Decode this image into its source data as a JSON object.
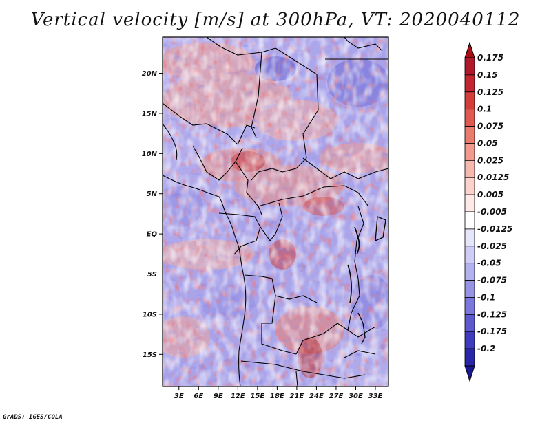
{
  "title": "Vertical velocity [m/s] at 300hPa, VT: 2020040112",
  "credit": "GrADS: IGES/COLA",
  "map": {
    "lat_labels": [
      {
        "text": "20N",
        "lat": 20
      },
      {
        "text": "15N",
        "lat": 15
      },
      {
        "text": "10N",
        "lat": 10
      },
      {
        "text": "5N",
        "lat": 5
      },
      {
        "text": "EQ",
        "lat": 0
      },
      {
        "text": "5S",
        "lat": -5
      },
      {
        "text": "10S",
        "lat": -10
      },
      {
        "text": "15S",
        "lat": -15
      }
    ],
    "lon_labels": [
      {
        "text": "3E",
        "lon": 3
      },
      {
        "text": "6E",
        "lon": 6
      },
      {
        "text": "9E",
        "lon": 9
      },
      {
        "text": "12E",
        "lon": 12
      },
      {
        "text": "15E",
        "lon": 15
      },
      {
        "text": "18E",
        "lon": 18
      },
      {
        "text": "21E",
        "lon": 21
      },
      {
        "text": "24E",
        "lon": 24
      },
      {
        "text": "27E",
        "lon": 27
      },
      {
        "text": "30E",
        "lon": 30
      },
      {
        "text": "33E",
        "lon": 33
      }
    ],
    "lat_range": [
      -19,
      24.5
    ],
    "lon_range": [
      0.5,
      35
    ]
  },
  "colorbar": {
    "levels": [
      {
        "label": "0.175",
        "color": "#b2182b"
      },
      {
        "label": "0.15",
        "color": "#c3262f"
      },
      {
        "label": "0.125",
        "color": "#d43d3a"
      },
      {
        "label": "0.1",
        "color": "#e05a4f"
      },
      {
        "label": "0.075",
        "color": "#ea7b6d"
      },
      {
        "label": "0.05",
        "color": "#f29a8d"
      },
      {
        "label": "0.025",
        "color": "#f7b8ae"
      },
      {
        "label": "0.0125",
        "color": "#fbd3cc"
      },
      {
        "label": "0.005",
        "color": "#fde9e5"
      },
      {
        "label": "-0.005",
        "color": "#ffffff"
      },
      {
        "label": "-0.0125",
        "color": "#e6e6fa"
      },
      {
        "label": "-0.025",
        "color": "#cfcdf5"
      },
      {
        "label": "-0.05",
        "color": "#b3b1ef"
      },
      {
        "label": "-0.075",
        "color": "#9794e6"
      },
      {
        "label": "-0.1",
        "color": "#7b77dc"
      },
      {
        "label": "-0.125",
        "color": "#5d59cf"
      },
      {
        "label": "-0.175",
        "color": "#3f3bbf"
      },
      {
        "label": "-0.2",
        "color": "#2a26a8"
      }
    ],
    "top_color": "#a50f15",
    "bottom_color": "#1a1794"
  }
}
